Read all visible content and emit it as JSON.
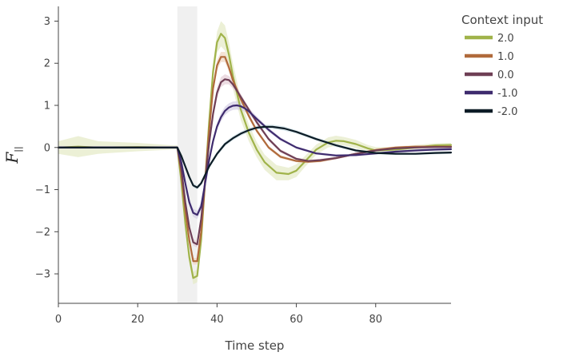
{
  "chart_data": {
    "type": "line",
    "xlabel": "Time step",
    "ylabel": "F",
    "ylabel_subscript": "||",
    "legend_title": "Context input",
    "legend_position": "top-right outside",
    "xlim": [
      0,
      99
    ],
    "ylim": [
      -3.7,
      3.35
    ],
    "xticks": [
      0,
      20,
      40,
      60,
      80
    ],
    "yticks": [
      -3,
      -2,
      -1,
      0,
      1,
      2,
      3
    ],
    "grid": false,
    "shaded_interval": [
      30,
      35
    ],
    "shaded_color": "#f0f0f0",
    "series": [
      {
        "name": "2.0",
        "color": "#a0b34a",
        "band_color": "#e6ebc8",
        "x": [
          0,
          5,
          10,
          20,
          29,
          30,
          31,
          32,
          33,
          34,
          35,
          36,
          37,
          38,
          39,
          40,
          41,
          42,
          43,
          44,
          45,
          46,
          48,
          50,
          52,
          55,
          58,
          60,
          62,
          65,
          68,
          70,
          72,
          75,
          78,
          80,
          85,
          90,
          95,
          99
        ],
        "y": [
          0,
          0.02,
          0,
          0.01,
          0,
          0,
          -0.8,
          -1.8,
          -2.6,
          -3.1,
          -3.05,
          -2.2,
          -0.8,
          0.6,
          1.8,
          2.5,
          2.7,
          2.6,
          2.2,
          1.7,
          1.3,
          0.9,
          0.35,
          -0.05,
          -0.35,
          -0.6,
          -0.63,
          -0.55,
          -0.35,
          -0.05,
          0.12,
          0.16,
          0.15,
          0.08,
          -0.02,
          -0.07,
          -0.05,
          0.0,
          0.05,
          0.06
        ],
        "band": [
          0.15,
          0.25,
          0.15,
          0.1,
          0.05,
          0.05,
          0.1,
          0.15,
          0.15,
          0.15,
          0.15,
          0.15,
          0.15,
          0.15,
          0.2,
          0.25,
          0.3,
          0.3,
          0.3,
          0.3,
          0.28,
          0.25,
          0.2,
          0.18,
          0.18,
          0.18,
          0.15,
          0.15,
          0.13,
          0.12,
          0.12,
          0.12,
          0.1,
          0.1,
          0.08,
          0.08,
          0.06,
          0.06,
          0.05,
          0.05
        ]
      },
      {
        "name": "1.0",
        "color": "#b06a3b",
        "band_color": "#f0d8c6",
        "x": [
          0,
          10,
          20,
          29,
          30,
          31,
          32,
          33,
          34,
          35,
          36,
          37,
          38,
          39,
          40,
          41,
          42,
          43,
          44,
          46,
          48,
          50,
          53,
          56,
          60,
          63,
          66,
          70,
          75,
          80,
          85,
          90,
          95,
          99
        ],
        "y": [
          0,
          0,
          0,
          0,
          0,
          -0.6,
          -1.5,
          -2.2,
          -2.7,
          -2.7,
          -2.0,
          -0.8,
          0.4,
          1.4,
          1.95,
          2.15,
          2.15,
          1.9,
          1.6,
          1.15,
          0.75,
          0.4,
          0.0,
          -0.22,
          -0.32,
          -0.34,
          -0.32,
          -0.25,
          -0.15,
          -0.06,
          0.0,
          0.02,
          0.02,
          0.02
        ],
        "band": [
          0.03,
          0.03,
          0.03,
          0.03,
          0.03,
          0.05,
          0.07,
          0.08,
          0.08,
          0.08,
          0.08,
          0.08,
          0.1,
          0.12,
          0.12,
          0.12,
          0.12,
          0.1,
          0.1,
          0.08,
          0.06,
          0.05,
          0.04,
          0.04,
          0.03,
          0.03,
          0.03,
          0.03,
          0.03,
          0.03,
          0.03,
          0.03,
          0.03,
          0.03
        ]
      },
      {
        "name": "0.0",
        "color": "#6e3f55",
        "band_color": "#e5d0d8",
        "x": [
          0,
          10,
          20,
          29,
          30,
          31,
          32,
          33,
          34,
          35,
          36,
          37,
          38,
          39,
          40,
          41,
          42,
          43,
          44,
          45,
          47,
          50,
          53,
          56,
          60,
          63,
          66,
          70,
          75,
          80,
          85,
          90,
          95,
          99
        ],
        "y": [
          0,
          0,
          0,
          0,
          0,
          -0.5,
          -1.3,
          -1.9,
          -2.25,
          -2.3,
          -1.7,
          -0.8,
          0.1,
          0.8,
          1.3,
          1.55,
          1.62,
          1.6,
          1.5,
          1.35,
          1.05,
          0.6,
          0.2,
          -0.08,
          -0.27,
          -0.32,
          -0.3,
          -0.25,
          -0.15,
          -0.07,
          -0.02,
          0.0,
          0.01,
          0.01
        ],
        "band": [
          0.03,
          0.03,
          0.03,
          0.03,
          0.03,
          0.05,
          0.07,
          0.08,
          0.08,
          0.08,
          0.08,
          0.08,
          0.1,
          0.12,
          0.12,
          0.12,
          0.12,
          0.1,
          0.1,
          0.08,
          0.06,
          0.05,
          0.04,
          0.04,
          0.03,
          0.03,
          0.03,
          0.03,
          0.03,
          0.03,
          0.03,
          0.03,
          0.03,
          0.03
        ]
      },
      {
        "name": "-1.0",
        "color": "#3e2b6e",
        "band_color": "#d7d2e6",
        "x": [
          0,
          10,
          20,
          29,
          30,
          31,
          32,
          33,
          34,
          35,
          36,
          37,
          38,
          39,
          40,
          41,
          42,
          43,
          44,
          45,
          46,
          47,
          48,
          50,
          53,
          56,
          60,
          65,
          70,
          75,
          80,
          85,
          90,
          95,
          99
        ],
        "y": [
          0,
          0,
          0,
          0,
          0,
          -0.35,
          -0.85,
          -1.3,
          -1.55,
          -1.6,
          -1.4,
          -0.85,
          -0.3,
          0.15,
          0.5,
          0.72,
          0.87,
          0.95,
          0.99,
          1.0,
          0.98,
          0.93,
          0.86,
          0.68,
          0.42,
          0.2,
          0.0,
          -0.14,
          -0.19,
          -0.18,
          -0.14,
          -0.1,
          -0.07,
          -0.05,
          -0.04
        ],
        "band": [
          0.03,
          0.03,
          0.03,
          0.03,
          0.03,
          0.05,
          0.07,
          0.08,
          0.1,
          0.1,
          0.1,
          0.08,
          0.08,
          0.08,
          0.08,
          0.1,
          0.1,
          0.1,
          0.1,
          0.1,
          0.1,
          0.08,
          0.08,
          0.06,
          0.05,
          0.04,
          0.03,
          0.03,
          0.03,
          0.03,
          0.03,
          0.03,
          0.03,
          0.03,
          0.03
        ]
      },
      {
        "name": "-2.0",
        "color": "#0c1c26",
        "band_color": "#cfe0e6",
        "x": [
          0,
          10,
          20,
          29,
          30,
          31,
          32,
          33,
          34,
          35,
          36,
          37,
          38,
          40,
          42,
          44,
          46,
          48,
          50,
          52,
          54,
          57,
          60,
          65,
          70,
          75,
          80,
          85,
          90,
          95,
          99
        ],
        "y": [
          0,
          0,
          0,
          0,
          0,
          -0.2,
          -0.45,
          -0.7,
          -0.9,
          -0.95,
          -0.85,
          -0.65,
          -0.45,
          -0.15,
          0.08,
          0.22,
          0.33,
          0.41,
          0.47,
          0.49,
          0.49,
          0.45,
          0.37,
          0.2,
          0.05,
          -0.07,
          -0.13,
          -0.15,
          -0.15,
          -0.13,
          -0.12
        ],
        "band": [
          0.03,
          0.03,
          0.03,
          0.03,
          0.03,
          0.04,
          0.05,
          0.05,
          0.05,
          0.05,
          0.05,
          0.05,
          0.05,
          0.05,
          0.05,
          0.05,
          0.05,
          0.05,
          0.05,
          0.05,
          0.05,
          0.05,
          0.04,
          0.04,
          0.04,
          0.03,
          0.03,
          0.03,
          0.03,
          0.03,
          0.03
        ]
      }
    ]
  }
}
